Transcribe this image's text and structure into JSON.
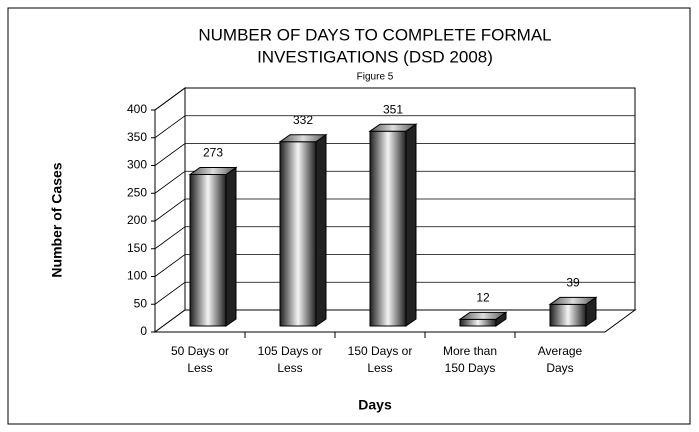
{
  "chart_data": {
    "type": "bar3d",
    "title": [
      "NUMBER OF DAYS TO COMPLETE FORMAL",
      "INVESTIGATIONS (DSD 2008)"
    ],
    "subtitle": "Figure 5",
    "x_label": "Days",
    "y_label": "Number of Cases",
    "categories": [
      [
        "50 Days or",
        "Less"
      ],
      [
        "105 Days or",
        "Less"
      ],
      [
        "150 Days or",
        "Less"
      ],
      [
        "More than",
        "150 Days"
      ],
      [
        "Average",
        "Days"
      ]
    ],
    "values": [
      273,
      332,
      351,
      12,
      39
    ],
    "ylim": [
      0,
      400
    ],
    "yticks": [
      0,
      50,
      100,
      150,
      200,
      250,
      300,
      350,
      400
    ],
    "grid": true,
    "color": "#303030"
  }
}
